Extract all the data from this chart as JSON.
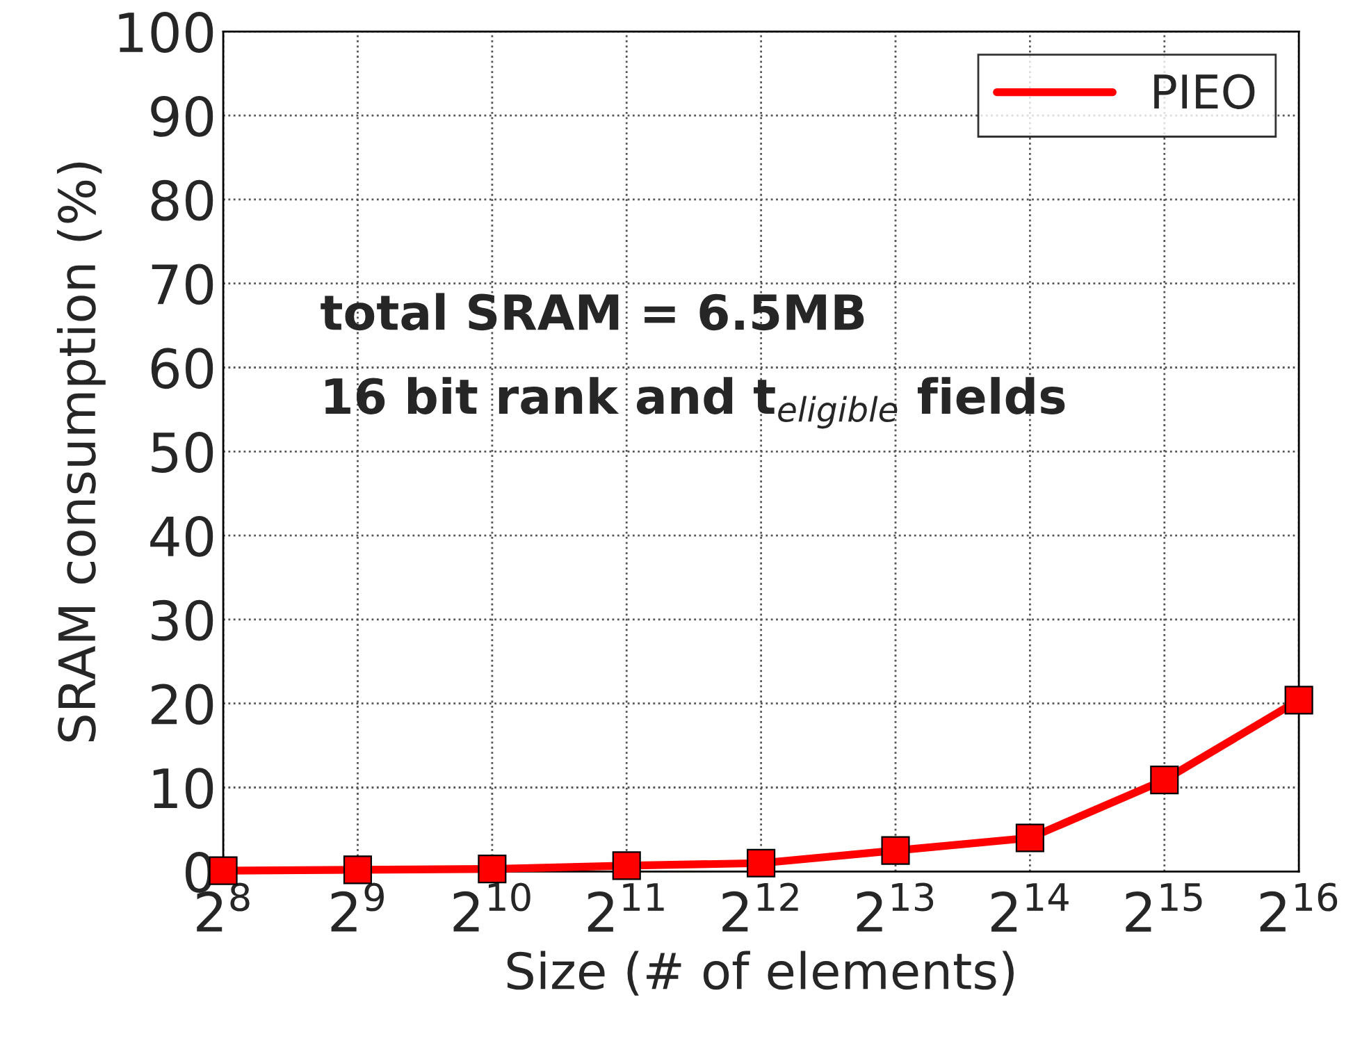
{
  "chart_data": {
    "type": "line",
    "xlabel": "Size (# of elements)",
    "ylabel": "SRAM consumption (%)",
    "categories": [
      "2$^{8}$",
      "2$^{9}$",
      "2$^{10}$",
      "2$^{11}$",
      "2$^{12}$",
      "2$^{13}$",
      "2$^{14}$",
      "2$^{15}$",
      "2$^{16}$"
    ],
    "series": [
      {
        "name": "PIEO",
        "color": "#ff0000",
        "values": [
          0.1,
          0.2,
          0.3,
          0.7,
          1.0,
          2.5,
          4.0,
          10.9,
          20.4
        ]
      }
    ],
    "ylim": [
      0,
      100
    ],
    "yticks": [
      0,
      10,
      20,
      30,
      40,
      50,
      60,
      70,
      80,
      90,
      100
    ],
    "annotations": [
      "total SRAM = 6.5MB",
      "16 bit rank and t$_{eligible}$ fields"
    ],
    "grid": true,
    "legend": "top right",
    "marker": "square",
    "line_style": "solid"
  }
}
